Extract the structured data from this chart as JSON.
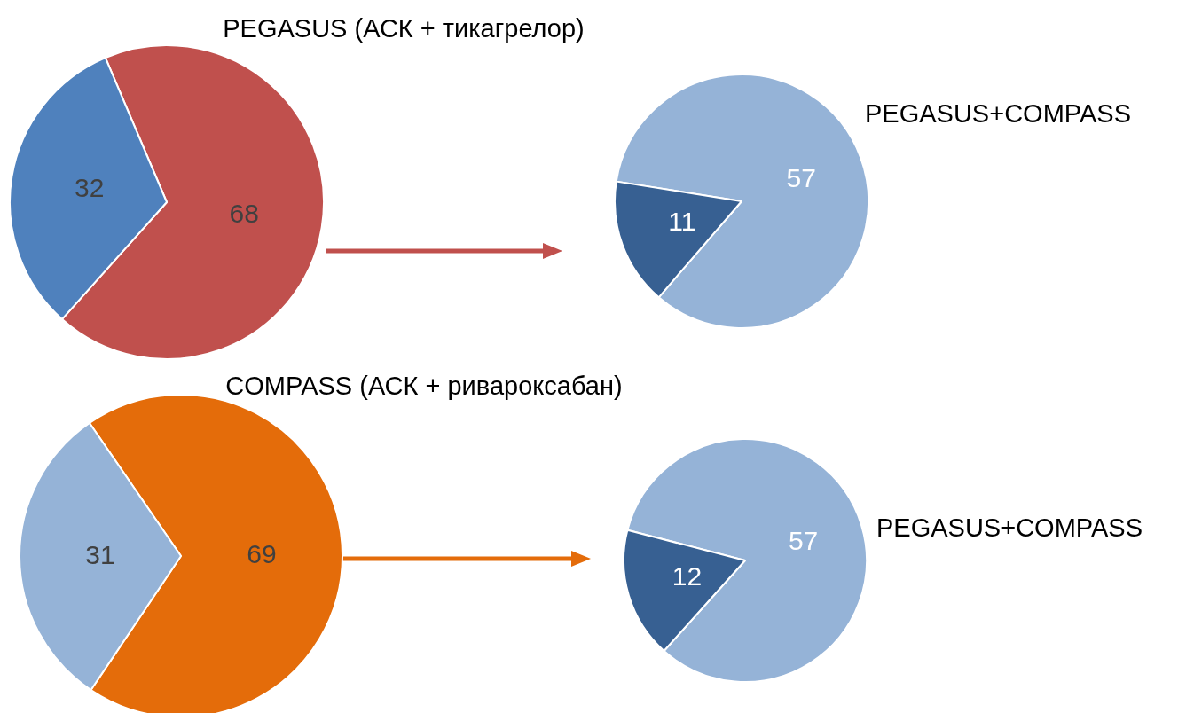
{
  "chart_data": [
    {
      "type": "pie",
      "title": "PEGASUS (АСК + тикагрелор)",
      "categories": [
        null,
        null
      ],
      "values": [
        68,
        32
      ],
      "colors": [
        "#c0504d",
        "#4f81bd"
      ],
      "data_labels": true
    },
    {
      "type": "pie",
      "title": "PEGASUS+COMPASS",
      "categories": [
        null,
        null
      ],
      "values": [
        57,
        11
      ],
      "colors": [
        "#95b3d7",
        "#376092"
      ],
      "data_labels": true
    },
    {
      "type": "pie",
      "title": "COMPASS (АСК + ривароксабан)",
      "categories": [
        null,
        null
      ],
      "values": [
        69,
        31
      ],
      "colors": [
        "#e46c0a",
        "#95b3d7"
      ],
      "data_labels": true
    },
    {
      "type": "pie",
      "title": "PEGASUS+COMPASS",
      "categories": [
        null,
        null
      ],
      "values": [
        57,
        12
      ],
      "colors": [
        "#95b3d7",
        "#376092"
      ],
      "data_labels": true
    }
  ]
}
